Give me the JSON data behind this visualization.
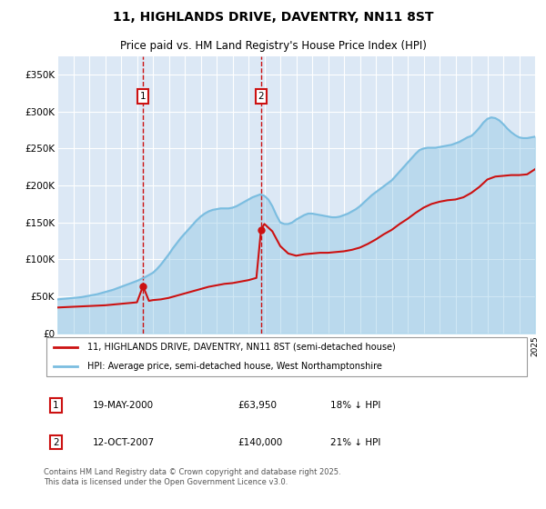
{
  "title": "11, HIGHLANDS DRIVE, DAVENTRY, NN11 8ST",
  "subtitle": "Price paid vs. HM Land Registry's House Price Index (HPI)",
  "legend_line1": "11, HIGHLANDS DRIVE, DAVENTRY, NN11 8ST (semi-detached house)",
  "legend_line2": "HPI: Average price, semi-detached house, West Northamptonshire",
  "footer": "Contains HM Land Registry data © Crown copyright and database right 2025.\nThis data is licensed under the Open Government Licence v3.0.",
  "annotation1_label": "1",
  "annotation1_date": "19-MAY-2000",
  "annotation1_price": "£63,950",
  "annotation1_hpi": "18% ↓ HPI",
  "annotation2_label": "2",
  "annotation2_date": "12-OCT-2007",
  "annotation2_price": "£140,000",
  "annotation2_hpi": "21% ↓ HPI",
  "hpi_color": "#7bbde0",
  "price_color": "#cc1111",
  "annotation_color": "#cc1111",
  "plot_bg": "#dce8f5",
  "grid_color": "#ffffff",
  "ylim": [
    0,
    375000
  ],
  "yticks": [
    0,
    50000,
    100000,
    150000,
    200000,
    250000,
    300000,
    350000
  ],
  "ytick_labels": [
    "£0",
    "£50K",
    "£100K",
    "£150K",
    "£200K",
    "£250K",
    "£300K",
    "£350K"
  ],
  "hpi_x": [
    1995.0,
    1995.25,
    1995.5,
    1995.75,
    1996.0,
    1996.25,
    1996.5,
    1996.75,
    1997.0,
    1997.25,
    1997.5,
    1997.75,
    1998.0,
    1998.25,
    1998.5,
    1998.75,
    1999.0,
    1999.25,
    1999.5,
    1999.75,
    2000.0,
    2000.25,
    2000.5,
    2000.75,
    2001.0,
    2001.25,
    2001.5,
    2001.75,
    2002.0,
    2002.25,
    2002.5,
    2002.75,
    2003.0,
    2003.25,
    2003.5,
    2003.75,
    2004.0,
    2004.25,
    2004.5,
    2004.75,
    2005.0,
    2005.25,
    2005.5,
    2005.75,
    2006.0,
    2006.25,
    2006.5,
    2006.75,
    2007.0,
    2007.25,
    2007.5,
    2007.75,
    2008.0,
    2008.25,
    2008.5,
    2008.75,
    2009.0,
    2009.25,
    2009.5,
    2009.75,
    2010.0,
    2010.25,
    2010.5,
    2010.75,
    2011.0,
    2011.25,
    2011.5,
    2011.75,
    2012.0,
    2012.25,
    2012.5,
    2012.75,
    2013.0,
    2013.25,
    2013.5,
    2013.75,
    2014.0,
    2014.25,
    2014.5,
    2014.75,
    2015.0,
    2015.25,
    2015.5,
    2015.75,
    2016.0,
    2016.25,
    2016.5,
    2016.75,
    2017.0,
    2017.25,
    2017.5,
    2017.75,
    2018.0,
    2018.25,
    2018.5,
    2018.75,
    2019.0,
    2019.25,
    2019.5,
    2019.75,
    2020.0,
    2020.25,
    2020.5,
    2020.75,
    2021.0,
    2021.25,
    2021.5,
    2021.75,
    2022.0,
    2022.25,
    2022.5,
    2022.75,
    2023.0,
    2023.25,
    2023.5,
    2023.75,
    2024.0,
    2024.25,
    2024.5,
    2024.75,
    2025.0
  ],
  "hpi_y": [
    46000,
    46500,
    47000,
    47500,
    48000,
    48500,
    49000,
    50000,
    51000,
    52000,
    53000,
    54500,
    56000,
    57500,
    59000,
    61000,
    63000,
    65000,
    67000,
    69000,
    71000,
    73500,
    76000,
    79000,
    82000,
    87000,
    93000,
    100000,
    107000,
    115000,
    122000,
    129000,
    135000,
    141000,
    147000,
    153000,
    158000,
    162000,
    165000,
    167000,
    168000,
    169000,
    169000,
    169000,
    170000,
    172000,
    175000,
    178000,
    181000,
    184000,
    186000,
    188000,
    186000,
    181000,
    172000,
    160000,
    150000,
    148000,
    148000,
    150000,
    154000,
    157000,
    160000,
    162000,
    162000,
    161000,
    160000,
    159000,
    158000,
    157000,
    157000,
    158000,
    160000,
    162000,
    165000,
    168000,
    172000,
    177000,
    182000,
    187000,
    191000,
    195000,
    199000,
    203000,
    207000,
    213000,
    219000,
    225000,
    231000,
    237000,
    243000,
    248000,
    250000,
    251000,
    251000,
    251000,
    252000,
    253000,
    254000,
    255000,
    257000,
    259000,
    262000,
    265000,
    267000,
    272000,
    278000,
    285000,
    290000,
    292000,
    291000,
    288000,
    283000,
    277000,
    272000,
    268000,
    265000,
    264000,
    264000,
    265000,
    266000
  ],
  "price_x": [
    1995.0,
    1995.5,
    1996.0,
    1996.5,
    1997.0,
    1997.5,
    1998.0,
    1998.5,
    1999.0,
    1999.5,
    2000.0,
    2000.38,
    2000.75,
    2001.0,
    2001.5,
    2002.0,
    2002.5,
    2003.0,
    2003.5,
    2004.0,
    2004.5,
    2005.0,
    2005.5,
    2006.0,
    2006.5,
    2007.0,
    2007.5,
    2007.79,
    2008.0,
    2008.5,
    2009.0,
    2009.5,
    2010.0,
    2010.5,
    2011.0,
    2011.5,
    2012.0,
    2012.5,
    2013.0,
    2013.5,
    2014.0,
    2014.5,
    2015.0,
    2015.5,
    2016.0,
    2016.5,
    2017.0,
    2017.5,
    2018.0,
    2018.5,
    2019.0,
    2019.5,
    2020.0,
    2020.5,
    2021.0,
    2021.5,
    2022.0,
    2022.5,
    2023.0,
    2023.5,
    2024.0,
    2024.5,
    2025.0
  ],
  "price_y": [
    35000,
    35500,
    36000,
    36500,
    37000,
    37500,
    38000,
    39000,
    40000,
    41000,
    42000,
    63950,
    44000,
    45000,
    46000,
    48000,
    51000,
    54000,
    57000,
    60000,
    63000,
    65000,
    67000,
    68000,
    70000,
    72000,
    75000,
    140000,
    148000,
    138000,
    118000,
    108000,
    105000,
    107000,
    108000,
    109000,
    109000,
    110000,
    111000,
    113000,
    116000,
    121000,
    127000,
    134000,
    140000,
    148000,
    155000,
    163000,
    170000,
    175000,
    178000,
    180000,
    181000,
    184000,
    190000,
    198000,
    208000,
    212000,
    213000,
    214000,
    214000,
    215000,
    222000
  ],
  "sale1_x": 2000.38,
  "sale1_y": 63950,
  "sale2_x": 2007.79,
  "sale2_y": 140000,
  "xmin": 1995,
  "xmax": 2025
}
